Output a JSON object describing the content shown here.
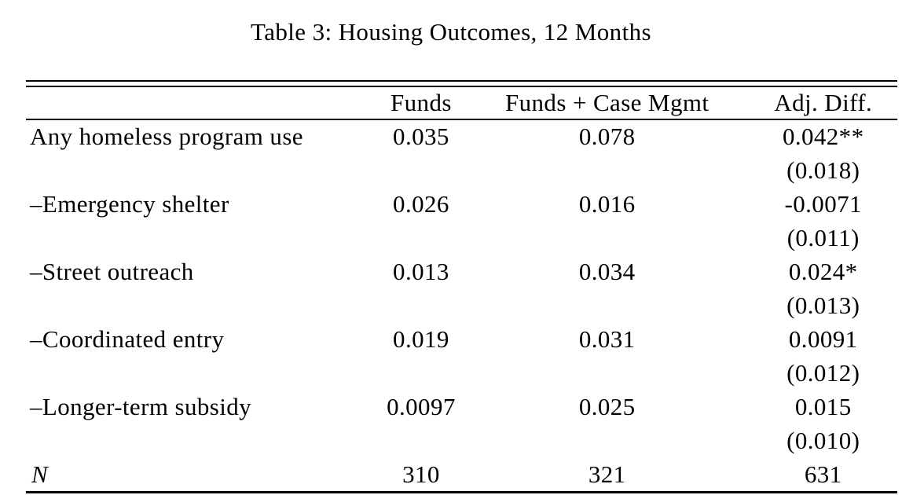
{
  "page": {
    "background_color": "#ffffff",
    "text_color": "#000000",
    "rule_color": "#000000"
  },
  "caption": "Table 3: Housing Outcomes, 12 Months",
  "table": {
    "columns": [
      "",
      "Funds",
      "Funds + Case Mgmt",
      "Adj. Diff."
    ],
    "rows": [
      {
        "label": "Any homeless program use",
        "funds": "0.035",
        "funds_case_mgmt": "0.078",
        "adj_diff": "0.042**",
        "adj_diff_se": "(0.018)"
      },
      {
        "label": "–Emergency shelter",
        "funds": "0.026",
        "funds_case_mgmt": "0.016",
        "adj_diff": "-0.0071",
        "adj_diff_se": "(0.011)"
      },
      {
        "label": "–Street outreach",
        "funds": "0.013",
        "funds_case_mgmt": "0.034",
        "adj_diff": "0.024*",
        "adj_diff_se": "(0.013)"
      },
      {
        "label": "–Coordinated entry",
        "funds": "0.019",
        "funds_case_mgmt": "0.031",
        "adj_diff": "0.0091",
        "adj_diff_se": "(0.012)"
      },
      {
        "label": "–Longer-term subsidy",
        "funds": "0.0097",
        "funds_case_mgmt": "0.025",
        "adj_diff": "0.015",
        "adj_diff_se": "(0.010)"
      }
    ],
    "footer": {
      "label": "N",
      "funds": "310",
      "funds_case_mgmt": "321",
      "adj_diff": "631"
    }
  }
}
